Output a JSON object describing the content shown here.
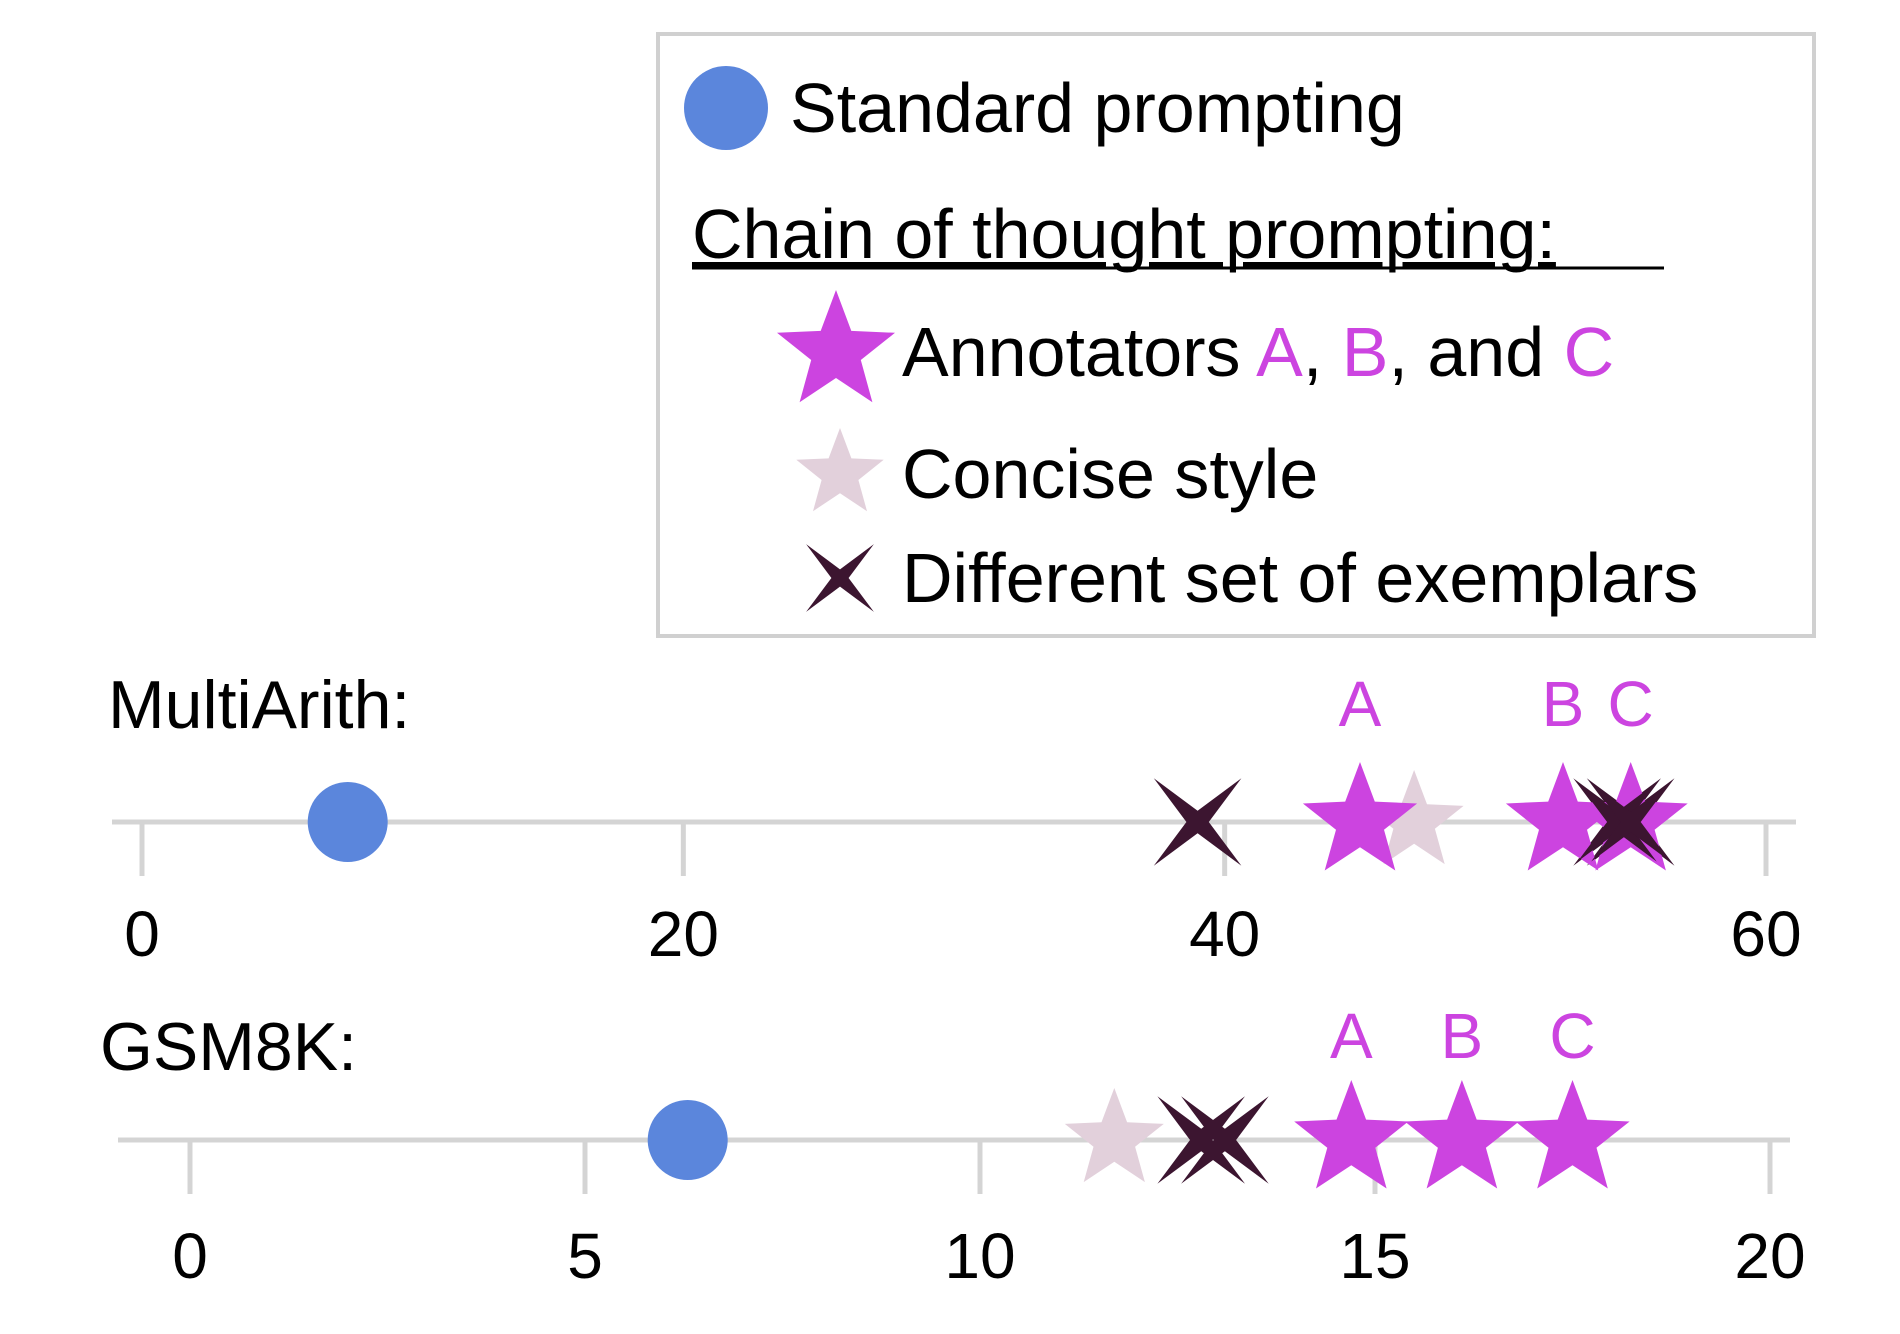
{
  "colors": {
    "standard": "#5b86dc",
    "annotator": "#cc44e0",
    "concise": "#e2d0db",
    "different": "#3c1530",
    "axis": "#d4d4d4"
  },
  "legend": {
    "standard_label": "Standard prompting",
    "cot_heading": "Chain of thought prompting:",
    "annotators_prefix": "Annotators ",
    "annotator_a": "A",
    "sep1": ", ",
    "annotator_b": "B",
    "sep2": ", and ",
    "annotator_c": "C",
    "concise_label": "Concise style",
    "different_label": "Different set of exemplars"
  },
  "chart_data": [
    {
      "type": "scatter",
      "title": "MultiArith:",
      "xlim": [
        0,
        60
      ],
      "xticks": [
        0,
        20,
        40,
        60
      ],
      "standard": 7.6,
      "annotators": [
        {
          "label": "A",
          "value": 45.0
        },
        {
          "label": "B",
          "value": 52.5
        },
        {
          "label": "C",
          "value": 55.0
        }
      ],
      "concise": [
        47.0
      ],
      "different": [
        39.0,
        54.5,
        55.0
      ]
    },
    {
      "type": "scatter",
      "title": "GSM8K:",
      "xlim": [
        0,
        20
      ],
      "xticks": [
        0,
        5,
        10,
        15,
        20
      ],
      "standard": 6.3,
      "annotators": [
        {
          "label": "A",
          "value": 14.7
        },
        {
          "label": "B",
          "value": 16.1
        },
        {
          "label": "C",
          "value": 17.5
        }
      ],
      "concise": [
        11.7
      ],
      "different": [
        12.8,
        13.1
      ]
    }
  ]
}
